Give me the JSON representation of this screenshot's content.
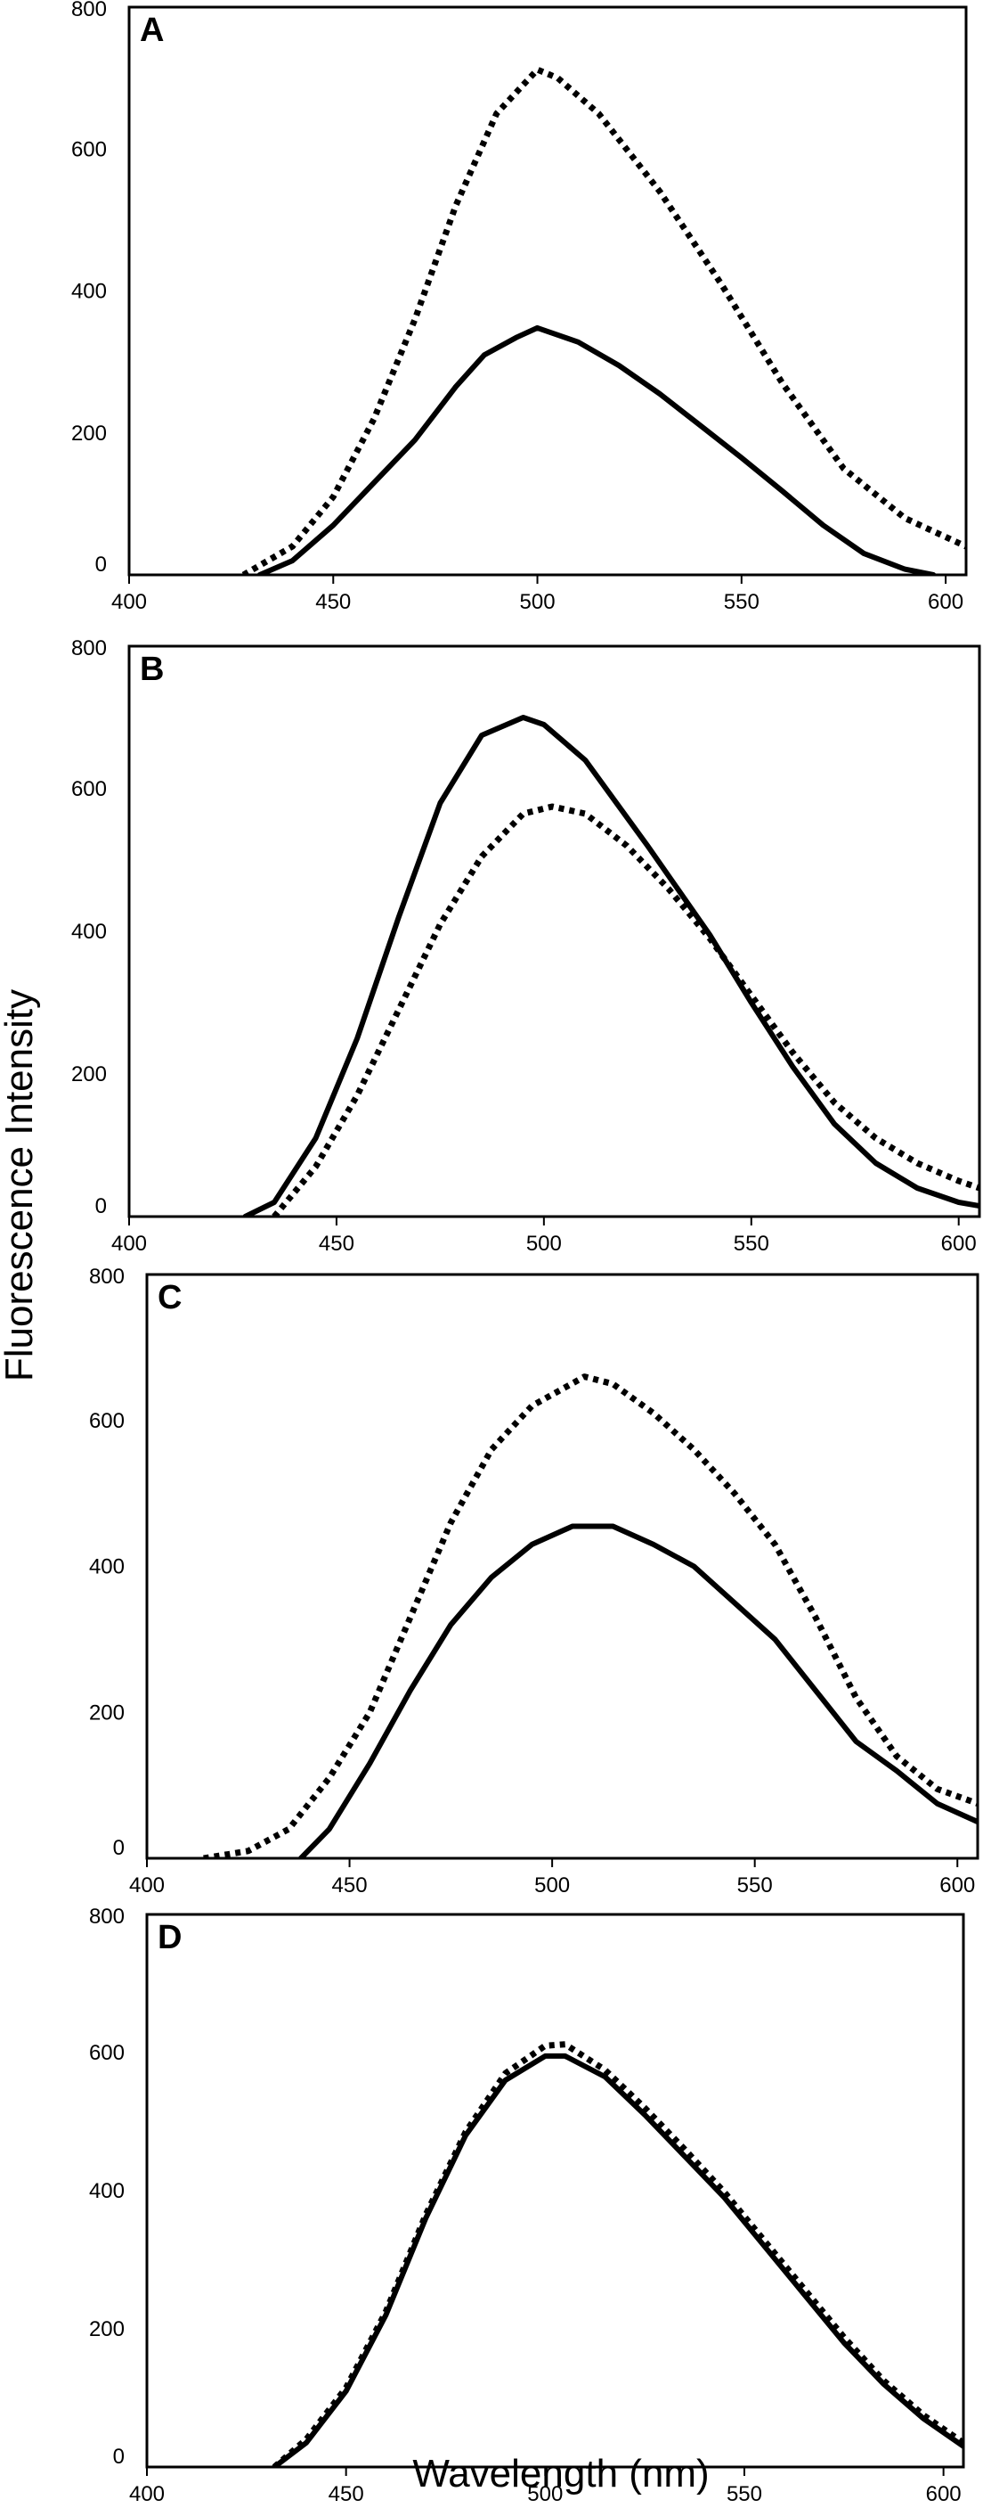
{
  "figure": {
    "ylabel": "Fluorescence Intensity",
    "xlabel": "Wavelength (nm)"
  },
  "chart_data": [
    {
      "type": "line",
      "panel_letter": "A",
      "xlim": [
        400,
        605
      ],
      "ylim": [
        0,
        800
      ],
      "xticks": [
        "400",
        "450",
        "500",
        "550",
        "600"
      ],
      "yticks": [
        "0",
        "200",
        "400",
        "600",
        "800"
      ],
      "grid": false,
      "series": [
        {
          "style": "solid",
          "color": "#000000",
          "points": [
            [
              432,
              0
            ],
            [
              440,
              20
            ],
            [
              450,
              70
            ],
            [
              460,
              130
            ],
            [
              470,
              190
            ],
            [
              480,
              265
            ],
            [
              487,
              310
            ],
            [
              495,
              335
            ],
            [
              500,
              348
            ],
            [
              510,
              328
            ],
            [
              520,
              295
            ],
            [
              530,
              255
            ],
            [
              540,
              210
            ],
            [
              550,
              165
            ],
            [
              560,
              118
            ],
            [
              570,
              70
            ],
            [
              580,
              30
            ],
            [
              590,
              8
            ],
            [
              597,
              0
            ]
          ]
        },
        {
          "style": "dotted",
          "color": "#000000",
          "points": [
            [
              428,
              0
            ],
            [
              440,
              40
            ],
            [
              450,
              110
            ],
            [
              460,
              220
            ],
            [
              470,
              360
            ],
            [
              480,
              520
            ],
            [
              490,
              650
            ],
            [
              500,
              712
            ],
            [
              505,
              700
            ],
            [
              515,
              650
            ],
            [
              530,
              540
            ],
            [
              545,
              410
            ],
            [
              560,
              270
            ],
            [
              575,
              150
            ],
            [
              590,
              80
            ],
            [
              605,
              40
            ]
          ]
        }
      ]
    },
    {
      "type": "line",
      "panel_letter": "B",
      "xlim": [
        400,
        605
      ],
      "ylim": [
        0,
        800
      ],
      "xticks": [
        "400",
        "450",
        "500",
        "550",
        "600"
      ],
      "yticks": [
        "0",
        "200",
        "400",
        "600",
        "800"
      ],
      "grid": false,
      "series": [
        {
          "style": "solid",
          "color": "#000000",
          "points": [
            [
              428,
              0
            ],
            [
              435,
              20
            ],
            [
              445,
              110
            ],
            [
              455,
              250
            ],
            [
              465,
              420
            ],
            [
              475,
              580
            ],
            [
              485,
              675
            ],
            [
              495,
              700
            ],
            [
              500,
              690
            ],
            [
              510,
              640
            ],
            [
              525,
              520
            ],
            [
              540,
              395
            ],
            [
              550,
              300
            ],
            [
              560,
              210
            ],
            [
              570,
              130
            ],
            [
              580,
              75
            ],
            [
              590,
              40
            ],
            [
              600,
              20
            ],
            [
              605,
              15
            ]
          ]
        },
        {
          "style": "dotted",
          "color": "#000000",
          "points": [
            [
              435,
              0
            ],
            [
              445,
              70
            ],
            [
              455,
              170
            ],
            [
              465,
              290
            ],
            [
              475,
              410
            ],
            [
              485,
              505
            ],
            [
              495,
              565
            ],
            [
              502,
              575
            ],
            [
              510,
              565
            ],
            [
              520,
              520
            ],
            [
              530,
              460
            ],
            [
              540,
              390
            ],
            [
              550,
              310
            ],
            [
              560,
              230
            ],
            [
              570,
              160
            ],
            [
              580,
              110
            ],
            [
              590,
              75
            ],
            [
              600,
              50
            ],
            [
              605,
              40
            ]
          ]
        }
      ]
    },
    {
      "type": "line",
      "panel_letter": "C",
      "xlim": [
        400,
        605
      ],
      "ylim": [
        0,
        800
      ],
      "xticks": [
        "400",
        "450",
        "500",
        "550",
        "600"
      ],
      "yticks": [
        "0",
        "200",
        "400",
        "600",
        "800"
      ],
      "grid": false,
      "series": [
        {
          "style": "solid",
          "color": "#000000",
          "points": [
            [
              438,
              0
            ],
            [
              445,
              40
            ],
            [
              455,
              130
            ],
            [
              465,
              230
            ],
            [
              475,
              320
            ],
            [
              485,
              385
            ],
            [
              495,
              430
            ],
            [
              505,
              455
            ],
            [
              515,
              455
            ],
            [
              525,
              430
            ],
            [
              535,
              400
            ],
            [
              545,
              350
            ],
            [
              555,
              300
            ],
            [
              565,
              230
            ],
            [
              575,
              160
            ],
            [
              585,
              120
            ],
            [
              595,
              75
            ],
            [
              605,
              50
            ]
          ]
        },
        {
          "style": "dotted",
          "color": "#000000",
          "points": [
            [
              414,
              0
            ],
            [
              425,
              10
            ],
            [
              435,
              40
            ],
            [
              445,
              110
            ],
            [
              455,
              200
            ],
            [
              465,
              330
            ],
            [
              475,
              460
            ],
            [
              485,
              560
            ],
            [
              495,
              620
            ],
            [
              508,
              660
            ],
            [
              515,
              650
            ],
            [
              525,
              610
            ],
            [
              535,
              560
            ],
            [
              545,
              500
            ],
            [
              555,
              430
            ],
            [
              565,
              330
            ],
            [
              575,
              220
            ],
            [
              585,
              140
            ],
            [
              595,
              95
            ],
            [
              605,
              75
            ]
          ]
        }
      ]
    },
    {
      "type": "line",
      "panel_letter": "D",
      "xlim": [
        400,
        605
      ],
      "ylim": [
        0,
        800
      ],
      "xticks": [
        "400",
        "450",
        "500",
        "550",
        "600"
      ],
      "yticks": [
        "0",
        "200",
        "400",
        "600",
        "800"
      ],
      "grid": false,
      "series": [
        {
          "style": "solid",
          "color": "#000000",
          "points": [
            [
              432,
              0
            ],
            [
              440,
              35
            ],
            [
              450,
              110
            ],
            [
              460,
              220
            ],
            [
              470,
              360
            ],
            [
              480,
              480
            ],
            [
              490,
              560
            ],
            [
              500,
              595
            ],
            [
              505,
              595
            ],
            [
              515,
              565
            ],
            [
              525,
              510
            ],
            [
              535,
              450
            ],
            [
              545,
              390
            ],
            [
              555,
              320
            ],
            [
              565,
              250
            ],
            [
              575,
              180
            ],
            [
              585,
              120
            ],
            [
              595,
              70
            ],
            [
              605,
              30
            ]
          ]
        },
        {
          "style": "dotted",
          "color": "#000000",
          "points": [
            [
              432,
              0
            ],
            [
              440,
              40
            ],
            [
              450,
              115
            ],
            [
              460,
              225
            ],
            [
              470,
              365
            ],
            [
              480,
              485
            ],
            [
              490,
              570
            ],
            [
              500,
              610
            ],
            [
              505,
              612
            ],
            [
              515,
              575
            ],
            [
              525,
              520
            ],
            [
              535,
              460
            ],
            [
              545,
              398
            ],
            [
              555,
              328
            ],
            [
              565,
              258
            ],
            [
              575,
              188
            ],
            [
              585,
              125
            ],
            [
              595,
              75
            ],
            [
              605,
              35
            ]
          ]
        }
      ]
    }
  ]
}
